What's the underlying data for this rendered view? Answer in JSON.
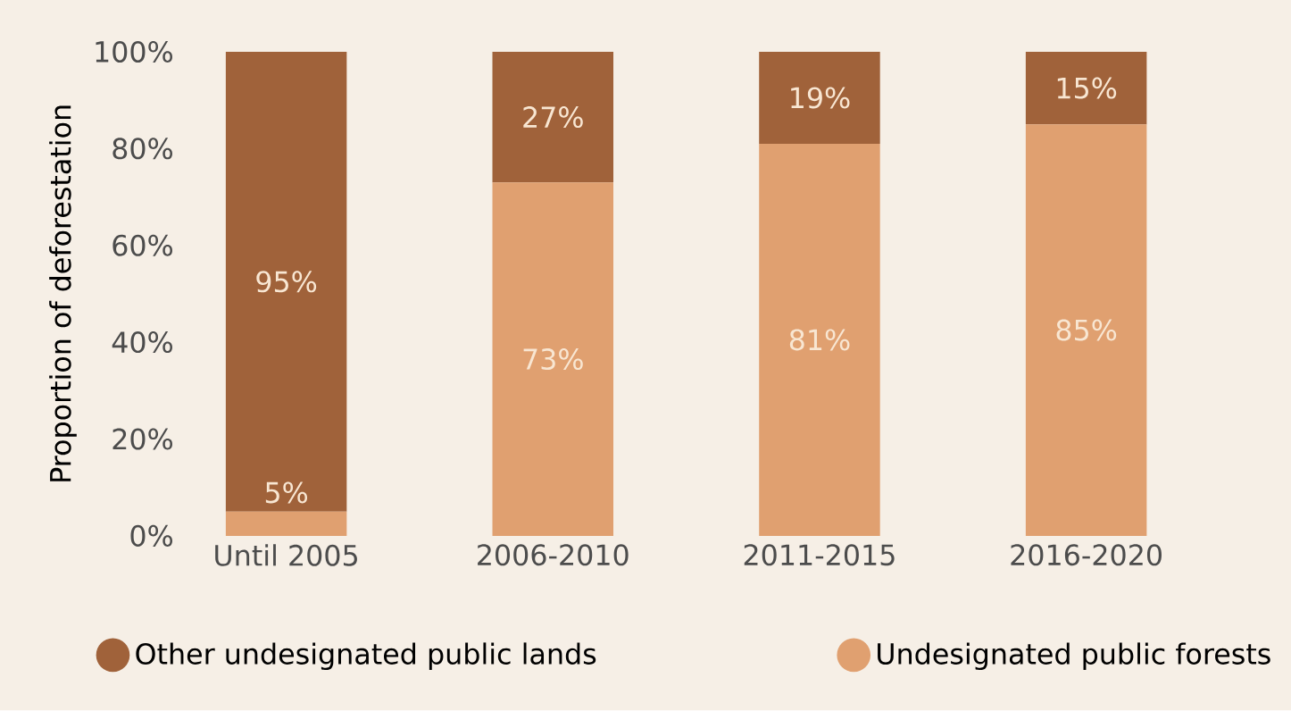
{
  "chart_data": {
    "type": "bar",
    "stacked": true,
    "ylabel": "Proportion of deforestation",
    "categories": [
      "Until 2005",
      "2006-2010",
      "2011-2015",
      "2016-2020"
    ],
    "series": [
      {
        "name": "Undesignated public forests",
        "color": "#e0a070",
        "values": [
          5,
          73,
          81,
          85
        ],
        "value_labels": [
          "5%",
          "73%",
          "81%",
          "85%"
        ]
      },
      {
        "name": "Other undesignated public lands",
        "color": "#a0623a",
        "values": [
          95,
          27,
          19,
          15
        ],
        "value_labels": [
          "95%",
          "27%",
          "19%",
          "15%"
        ]
      }
    ],
    "ylim": [
      0,
      100
    ],
    "yticks": [
      {
        "value": 0,
        "label": "0%"
      },
      {
        "value": 20,
        "label": "20%"
      },
      {
        "value": 40,
        "label": "40%"
      },
      {
        "value": 60,
        "label": "60%"
      },
      {
        "value": 80,
        "label": "80%"
      },
      {
        "value": 100,
        "label": "100%"
      }
    ],
    "grid": false,
    "legend": "bottom"
  }
}
